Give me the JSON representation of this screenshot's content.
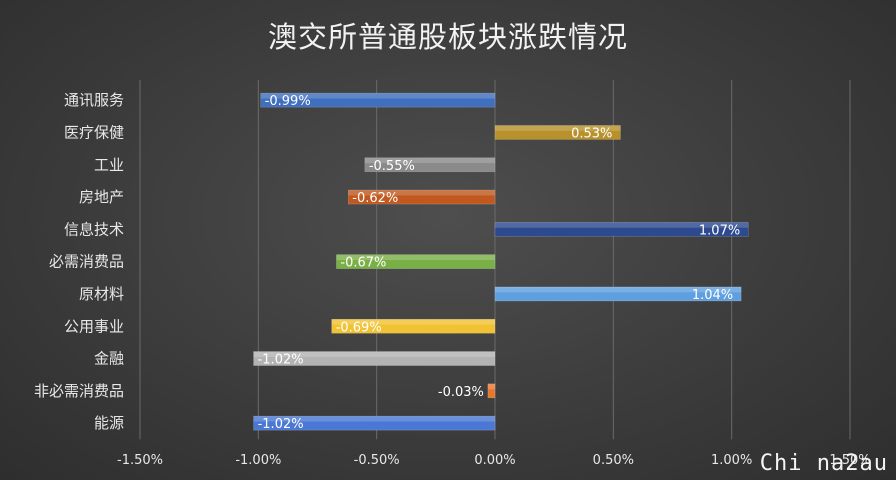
{
  "chart_data": {
    "type": "bar",
    "orientation": "horizontal",
    "title": "澳交所普通股板块涨跌情况",
    "categories": [
      "通讯服务",
      "医疗保健",
      "工业",
      "房地产",
      "信息技术",
      "必需消费品",
      "原材料",
      "公用事业",
      "金融",
      "非必需消费品",
      "能源"
    ],
    "values": [
      -0.99,
      0.53,
      -0.55,
      -0.62,
      1.07,
      -0.67,
      1.04,
      -0.69,
      -1.02,
      -0.03,
      -1.02
    ],
    "data_labels": [
      "-0.99%",
      "0.53%",
      "-0.55%",
      "-0.62%",
      "1.07%",
      "-0.67%",
      "1.04%",
      "-0.69%",
      "-1.02%",
      "-0.03%",
      "-1.02%"
    ],
    "colors": [
      "#3f6fbf",
      "#b8912a",
      "#8a8a8a",
      "#c0581f",
      "#2d4a8f",
      "#79b046",
      "#5f9fe0",
      "#f1c232",
      "#b3b3b3",
      "#e8772d",
      "#4a78d4"
    ],
    "xlim": [
      -1.5,
      1.5
    ],
    "x_ticks": [
      -1.5,
      -1.0,
      -0.5,
      0.0,
      0.5,
      1.0,
      1.5
    ],
    "x_tick_labels": [
      "-1.50%",
      "-1.00%",
      "-0.50%",
      "0.00%",
      "0.50%",
      "1.00%",
      "1.50%"
    ],
    "grid": "vertical",
    "legend": "none"
  },
  "watermark": "Chi na2au"
}
